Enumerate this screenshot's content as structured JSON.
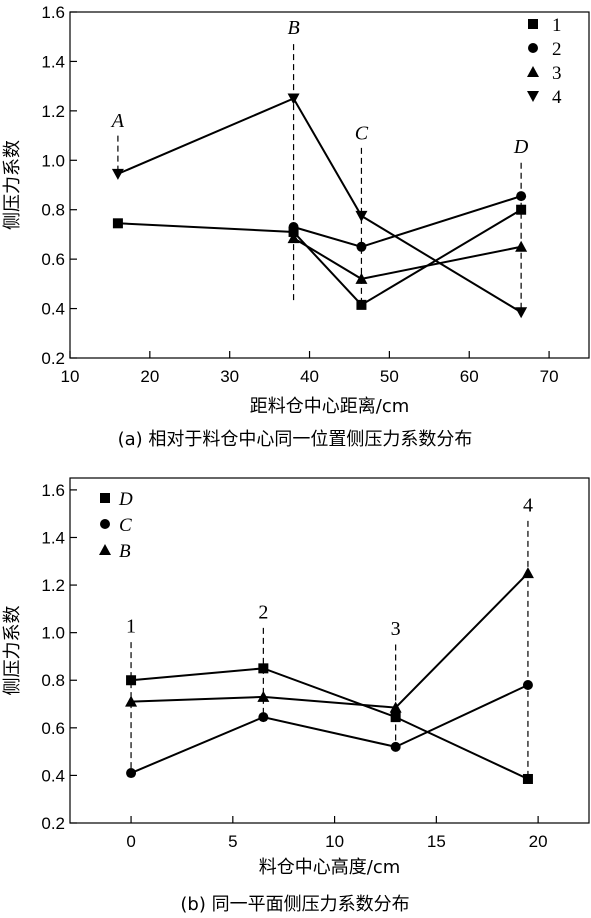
{
  "chart_data": [
    {
      "type": "line",
      "caption": "(a)  相对于料仓中心同一位置侧压力系数分布",
      "xlabel": "距料仓中心距离/cm",
      "ylabel": "侧压力系数",
      "xlim": [
        10,
        75
      ],
      "ylim": [
        0.2,
        1.6
      ],
      "xticks": [
        10,
        20,
        30,
        40,
        50,
        60,
        70
      ],
      "yticks": [
        0.2,
        0.4,
        0.6,
        0.8,
        1.0,
        1.2,
        1.4,
        1.6
      ],
      "ytick_labels": [
        "0.2",
        "0.4",
        "0.6",
        "0.8",
        "1.0",
        "1.2",
        "1.4",
        "1.6"
      ],
      "legend_position": "top-right",
      "legend_italic": false,
      "annotation_italic": true,
      "series": [
        {
          "name": "1",
          "marker": "square",
          "x": [
            16,
            38,
            46.5,
            66.5
          ],
          "y": [
            0.745,
            0.71,
            0.415,
            0.8
          ]
        },
        {
          "name": "2",
          "marker": "circle",
          "x": [
            38,
            46.5,
            66.5
          ],
          "y": [
            0.73,
            0.65,
            0.855
          ]
        },
        {
          "name": "3",
          "marker": "triangle-up",
          "x": [
            38,
            46.5,
            66.5
          ],
          "y": [
            0.685,
            0.52,
            0.65
          ]
        },
        {
          "name": "4",
          "marker": "triangle-down",
          "x": [
            16,
            38,
            46.5,
            66.5
          ],
          "y": [
            0.945,
            1.25,
            0.775,
            0.385
          ]
        }
      ],
      "annotations": [
        {
          "text": "A",
          "x": 16,
          "y_label": 1.135,
          "y_from": 1.1,
          "y_to": 0.96
        },
        {
          "text": "B",
          "x": 38,
          "y_label": 1.51,
          "y_from": 1.47,
          "y_to": 0.42
        },
        {
          "text": "C",
          "x": 46.5,
          "y_label": 1.085,
          "y_from": 1.05,
          "y_to": 0.42
        },
        {
          "text": "D",
          "x": 66.5,
          "y_label": 1.03,
          "y_from": 0.99,
          "y_to": 0.4
        }
      ]
    },
    {
      "type": "line",
      "caption": "(b) 同一平面侧压力系数分布",
      "xlabel": "料仓中心高度/cm",
      "ylabel": "侧压力系数",
      "xlim": [
        -3,
        22.5
      ],
      "ylim": [
        0.2,
        1.65
      ],
      "xticks": [
        0,
        5,
        10,
        15,
        20
      ],
      "yticks": [
        0.2,
        0.4,
        0.6,
        0.8,
        1.0,
        1.2,
        1.4,
        1.6
      ],
      "ytick_labels": [
        "0.2",
        "0.4",
        "0.6",
        "0.8",
        "1.0",
        "1.2",
        "1.4",
        "1.6"
      ],
      "legend_position": "top-left",
      "legend_italic": true,
      "annotation_italic": false,
      "series": [
        {
          "name": "D",
          "marker": "square",
          "x": [
            0,
            6.5,
            13,
            19.5
          ],
          "y": [
            0.8,
            0.85,
            0.645,
            0.385
          ]
        },
        {
          "name": "C",
          "marker": "circle",
          "x": [
            0,
            6.5,
            13,
            19.5
          ],
          "y": [
            0.41,
            0.645,
            0.52,
            0.78
          ]
        },
        {
          "name": "B",
          "marker": "triangle-up",
          "x": [
            0,
            6.5,
            13,
            19.5
          ],
          "y": [
            0.71,
            0.73,
            0.685,
            1.25
          ]
        }
      ],
      "annotations": [
        {
          "text": "1",
          "x": 0,
          "y_label": 1.0,
          "y_from": 0.96,
          "y_to": 0.42
        },
        {
          "text": "2",
          "x": 6.5,
          "y_label": 1.06,
          "y_from": 1.02,
          "y_to": 0.66
        },
        {
          "text": "3",
          "x": 13,
          "y_label": 0.99,
          "y_from": 0.95,
          "y_to": 0.53
        },
        {
          "text": "4",
          "x": 19.5,
          "y_label": 1.51,
          "y_from": 1.47,
          "y_to": 0.4
        }
      ]
    }
  ]
}
